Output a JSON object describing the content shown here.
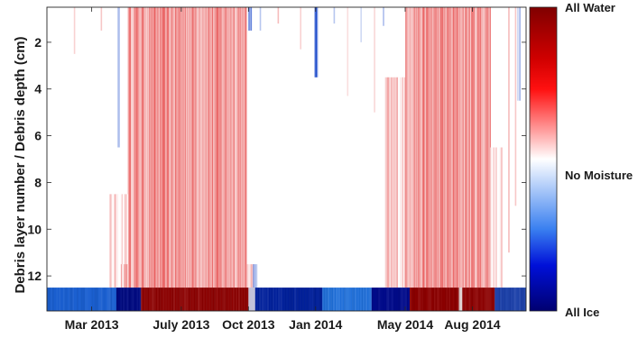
{
  "chart_data": {
    "type": "heatmap",
    "title": "",
    "ylabel": "Debris layer number / Debris depth (cm)",
    "xlabel": "",
    "xticks": [
      "Mar 2013",
      "July 2013",
      "Oct 2013",
      "Jan 2014",
      "May 2014",
      "Aug 2014"
    ],
    "xtick_months": [
      2.0,
      6.0,
      9.0,
      12.0,
      16.0,
      19.0
    ],
    "xlim_months": [
      0.0,
      21.4
    ],
    "yticks": [
      "2",
      "4",
      "6",
      "8",
      "10",
      "12"
    ],
    "ytick_values": [
      2,
      4,
      6,
      8,
      10,
      12
    ],
    "ylim": [
      0.5,
      13.5
    ],
    "y_reversed": true,
    "colorbar": {
      "top_label": "All Water",
      "middle_label": "No Moisture",
      "bottom_label": "All Ice",
      "colors": [
        "#000070",
        "#0000d8",
        "#3070f0",
        "#ffffff",
        "#f06060",
        "#ff0000",
        "#800000"
      ]
    },
    "colors": {
      "water": "#f08a8a",
      "ice": "#1e64c8"
    },
    "bottom_layer_segments": [
      {
        "from": 0.0,
        "to": 3.1,
        "color": "#1a5fd0"
      },
      {
        "from": 3.1,
        "to": 4.2,
        "color": "#000a80"
      },
      {
        "from": 4.2,
        "to": 9.0,
        "color": "#8b0000"
      },
      {
        "from": 9.0,
        "to": 9.3,
        "color": "#c0c0d8"
      },
      {
        "from": 9.3,
        "to": 12.3,
        "color": "#001f9a"
      },
      {
        "from": 12.3,
        "to": 14.5,
        "color": "#1e6ed8"
      },
      {
        "from": 14.5,
        "to": 16.2,
        "color": "#000a8a"
      },
      {
        "from": 16.2,
        "to": 18.4,
        "color": "#8b0000"
      },
      {
        "from": 18.4,
        "to": 18.55,
        "color": "#e0d0d0"
      },
      {
        "from": 18.55,
        "to": 20.0,
        "color": "#8b0000"
      },
      {
        "from": 20.0,
        "to": 21.4,
        "color": "#1a3fa8"
      }
    ],
    "moisture_bands": [
      {
        "from": 3.6,
        "to": 8.9,
        "top_layer": 0.5,
        "level": 0.45,
        "kind": "water"
      },
      {
        "from": 2.8,
        "to": 3.6,
        "top_layer": 8.5,
        "level": 0.12,
        "kind": "water"
      },
      {
        "from": 3.3,
        "to": 3.6,
        "top_layer": 11.5,
        "level": 0.3,
        "kind": "water"
      },
      {
        "from": 8.9,
        "to": 9.2,
        "top_layer": 11.5,
        "level": 0.2,
        "kind": "water"
      },
      {
        "from": 15.1,
        "to": 16.0,
        "top_layer": 3.5,
        "level": 0.2,
        "kind": "water"
      },
      {
        "from": 16.0,
        "to": 19.8,
        "top_layer": 0.5,
        "level": 0.45,
        "kind": "water"
      },
      {
        "from": 19.8,
        "to": 20.3,
        "top_layer": 6.5,
        "level": 0.15,
        "kind": "water"
      },
      {
        "from": 11.95,
        "to": 12.05,
        "top_layer": 0.5,
        "bottom_layer": 3.5,
        "level": 0.8,
        "kind": "ice"
      },
      {
        "from": 9.0,
        "to": 9.1,
        "top_layer": 0.5,
        "bottom_layer": 1.5,
        "level": 0.5,
        "kind": "ice"
      },
      {
        "from": 3.15,
        "to": 3.22,
        "top_layer": 0.5,
        "bottom_layer": 6.5,
        "level": 0.35,
        "kind": "ice"
      },
      {
        "from": 9.2,
        "to": 9.35,
        "top_layer": 11.5,
        "bottom_layer": 12.5,
        "level": 0.3,
        "kind": "ice"
      },
      {
        "from": 21.0,
        "to": 21.1,
        "top_layer": 0.5,
        "bottom_layer": 4.5,
        "level": 0.35,
        "kind": "ice"
      }
    ]
  }
}
